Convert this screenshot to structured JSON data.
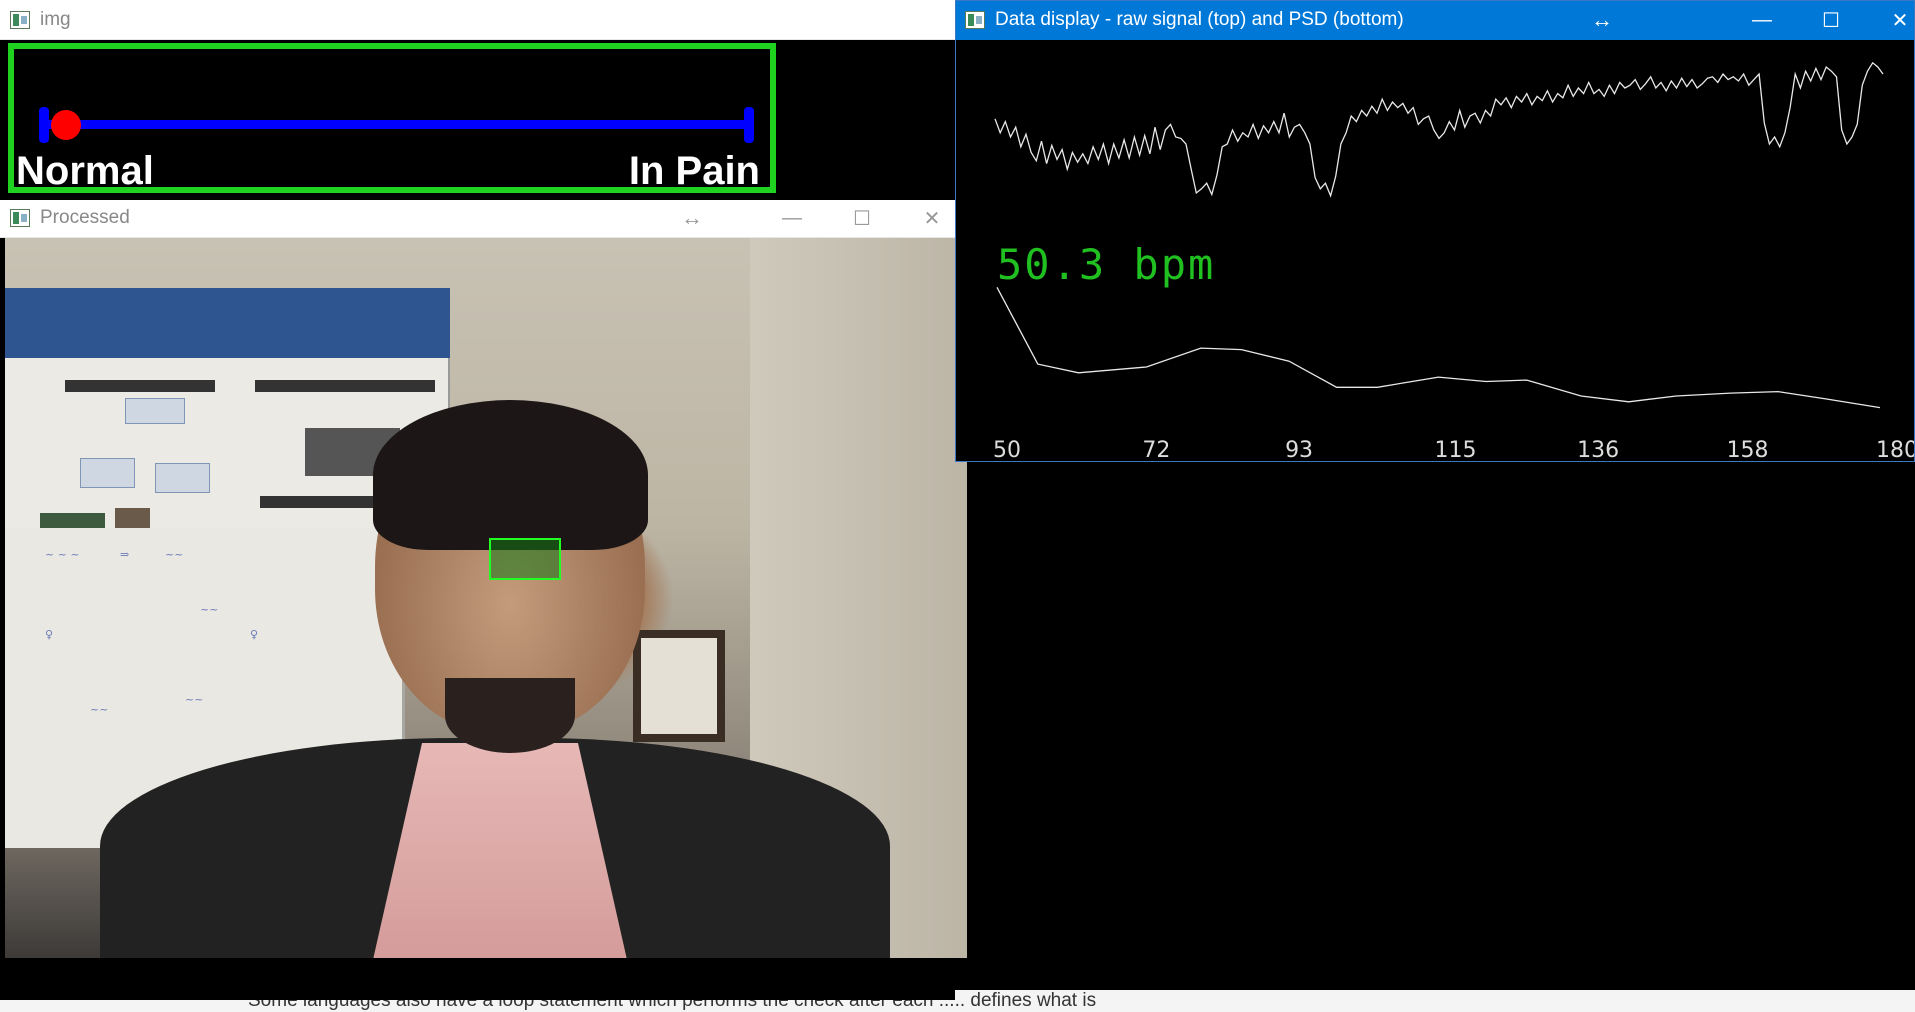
{
  "background_page": {
    "text": "Some languages also have a loop statement which performs the check after each ..... defines what is"
  },
  "windows": {
    "img": {
      "title": "img",
      "slider": {
        "left_label": "Normal",
        "right_label": "In Pain",
        "value_fraction": 0.02,
        "frame_color": "#1fd21f",
        "track_color": "#0000ff",
        "knob_color": "#ff0000"
      }
    },
    "processed": {
      "title": "Processed",
      "roi_color": "#22ff22"
    },
    "data_display": {
      "title": "Data display - raw signal (top) and PSD (bottom)",
      "bpm_text": "50.3 bpm",
      "bpm_color": "#20c020",
      "accent_color": "#0078d7"
    }
  },
  "icons": {
    "resize": "left-right-arrow-icon",
    "minimize": "minimize-icon",
    "maximize": "maximize-icon",
    "close": "close-icon",
    "app": "opencv-window-icon"
  },
  "chart_data": [
    {
      "type": "line",
      "name_hint": "raw",
      "values": [
        0.42,
        0.52,
        0.44,
        0.55,
        0.48,
        0.62,
        0.53,
        0.66,
        0.72,
        0.58,
        0.74,
        0.61,
        0.71,
        0.64,
        0.78,
        0.66,
        0.73,
        0.67,
        0.74,
        0.62,
        0.71,
        0.6,
        0.74,
        0.6,
        0.7,
        0.57,
        0.7,
        0.55,
        0.68,
        0.54,
        0.67,
        0.48,
        0.64,
        0.5,
        0.46,
        0.55,
        0.56,
        0.6,
        0.78,
        0.95,
        0.92,
        0.88,
        0.96,
        0.82,
        0.62,
        0.6,
        0.5,
        0.58,
        0.52,
        0.55,
        0.46,
        0.56,
        0.47,
        0.52,
        0.44,
        0.52,
        0.38,
        0.55,
        0.48,
        0.46,
        0.52,
        0.6,
        0.84,
        0.92,
        0.88,
        0.97,
        0.83,
        0.6,
        0.52,
        0.4,
        0.44,
        0.36,
        0.4,
        0.33,
        0.38,
        0.28,
        0.36,
        0.3,
        0.34,
        0.31,
        0.38,
        0.34,
        0.46,
        0.42,
        0.4,
        0.5,
        0.56,
        0.52,
        0.44,
        0.5,
        0.36,
        0.48,
        0.4,
        0.38,
        0.45,
        0.36,
        0.4,
        0.28,
        0.32,
        0.27,
        0.34,
        0.26,
        0.3,
        0.24,
        0.32,
        0.26,
        0.29,
        0.22,
        0.3,
        0.24,
        0.27,
        0.18,
        0.26,
        0.2,
        0.24,
        0.16,
        0.24,
        0.21,
        0.26,
        0.18,
        0.24,
        0.16,
        0.2,
        0.18,
        0.14,
        0.21,
        0.17,
        0.12,
        0.2,
        0.16,
        0.22,
        0.15,
        0.2,
        0.13,
        0.19,
        0.14,
        0.2,
        0.17,
        0.13,
        0.12,
        0.16,
        0.1,
        0.14,
        0.12,
        0.15,
        0.1,
        0.18,
        0.14,
        0.1,
        0.45,
        0.6,
        0.55,
        0.62,
        0.52,
        0.34,
        0.1,
        0.2,
        0.08,
        0.15,
        0.06,
        0.14,
        0.05,
        0.08,
        0.12,
        0.5,
        0.6,
        0.55,
        0.46,
        0.18,
        0.08,
        0.02,
        0.05,
        0.1
      ],
      "ylim": [
        0,
        1
      ]
    },
    {
      "type": "line",
      "name_hint": "psd",
      "x": [
        50,
        56,
        62,
        72,
        80,
        86,
        93,
        100,
        106,
        115,
        122,
        128,
        136,
        143,
        150,
        158,
        165,
        172,
        180
      ],
      "y": [
        0.95,
        0.42,
        0.36,
        0.4,
        0.53,
        0.52,
        0.44,
        0.26,
        0.26,
        0.33,
        0.3,
        0.31,
        0.2,
        0.16,
        0.2,
        0.22,
        0.23,
        0.18,
        0.12
      ],
      "x_ticks": [
        "50",
        "72",
        "93",
        "115",
        "136",
        "158",
        "180"
      ],
      "xlim": [
        50,
        180
      ],
      "ylim": [
        0,
        1
      ]
    }
  ]
}
